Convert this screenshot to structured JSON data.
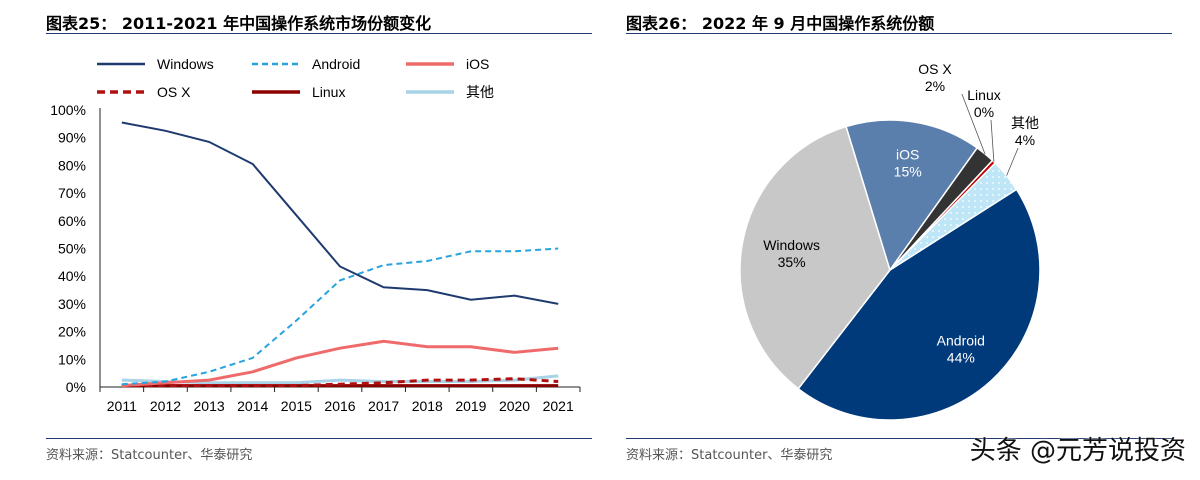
{
  "left": {
    "title": "图表25： 2011-2021 年中国操作系统市场份额变化",
    "source": "资料来源：Statcounter、华泰研究"
  },
  "right": {
    "title": "图表26： 2022 年 9 月中国操作系统份额",
    "source": "资料来源：Statcounter、华泰研究"
  },
  "watermark": "头条 @元芳说投资",
  "colors": {
    "Windows": "#1f3a6e",
    "Android": "#29a3dd",
    "iOS": "#ef6b6b",
    "OS X": "#b01010",
    "Linux": "#8b0000",
    "其他": "#a9d3e6",
    "pie_Windows": "#c8c8c8",
    "pie_Android": "#003a7a",
    "pie_iOS": "#5b7fac",
    "pie_OSX": "#333333",
    "pie_Linux": "#c00000",
    "pie_other": "#bfe6f7"
  },
  "chart_data": [
    {
      "type": "line",
      "title": "2011-2021 年中国操作系统市场份额变化",
      "x": [
        "2011",
        "2012",
        "2013",
        "2014",
        "2015",
        "2016",
        "2017",
        "2018",
        "2019",
        "2020",
        "2021"
      ],
      "y_ticks": [
        "0%",
        "10%",
        "20%",
        "30%",
        "40%",
        "50%",
        "60%",
        "70%",
        "80%",
        "90%",
        "100%"
      ],
      "ylim": [
        0,
        100
      ],
      "legend": "top",
      "series": [
        {
          "name": "Windows",
          "style": "solid",
          "values": [
            95.5,
            92.5,
            88.5,
            80.5,
            62.0,
            43.5,
            36.0,
            35.0,
            31.5,
            33.0,
            30.0
          ]
        },
        {
          "name": "Android",
          "style": "dashed",
          "values": [
            1.0,
            2.0,
            5.5,
            10.5,
            24.0,
            38.5,
            44.0,
            45.5,
            49.0,
            49.0,
            50.0
          ]
        },
        {
          "name": "iOS",
          "style": "solid",
          "values": [
            0.5,
            1.5,
            2.5,
            5.5,
            10.5,
            14.0,
            16.5,
            14.5,
            14.5,
            12.5,
            14.0
          ]
        },
        {
          "name": "OS X",
          "style": "dashed",
          "values": [
            0.5,
            0.5,
            0.5,
            0.5,
            0.5,
            1.0,
            1.5,
            2.5,
            2.5,
            3.0,
            2.0
          ]
        },
        {
          "name": "Linux",
          "style": "solid",
          "values": [
            0.5,
            0.5,
            0.5,
            0.5,
            0.5,
            0.5,
            0.5,
            0.5,
            0.5,
            0.5,
            0.5
          ]
        },
        {
          "name": "其他",
          "style": "solid",
          "values": [
            2.5,
            2.0,
            1.5,
            1.5,
            1.5,
            2.5,
            2.0,
            2.0,
            2.0,
            2.5,
            4.0
          ]
        }
      ]
    },
    {
      "type": "pie",
      "title": "2022 年 9 月中国操作系统份额",
      "slices": [
        {
          "name": "Android",
          "pct_label": "44%",
          "value": 44.5,
          "color_key": "pie_Android"
        },
        {
          "name": "Windows",
          "pct_label": "35%",
          "value": 34.8,
          "color_key": "pie_Windows"
        },
        {
          "name": "iOS",
          "pct_label": "15%",
          "value": 14.6,
          "color_key": "pie_iOS"
        },
        {
          "name": "OS X",
          "pct_label": "2%",
          "value": 2.1,
          "color_key": "pie_OSX"
        },
        {
          "name": "Linux",
          "pct_label": "0%",
          "value": 0.4,
          "color_key": "pie_Linux"
        },
        {
          "name": "其他",
          "pct_label": "4%",
          "value": 3.6,
          "color_key": "pie_other"
        }
      ]
    }
  ]
}
